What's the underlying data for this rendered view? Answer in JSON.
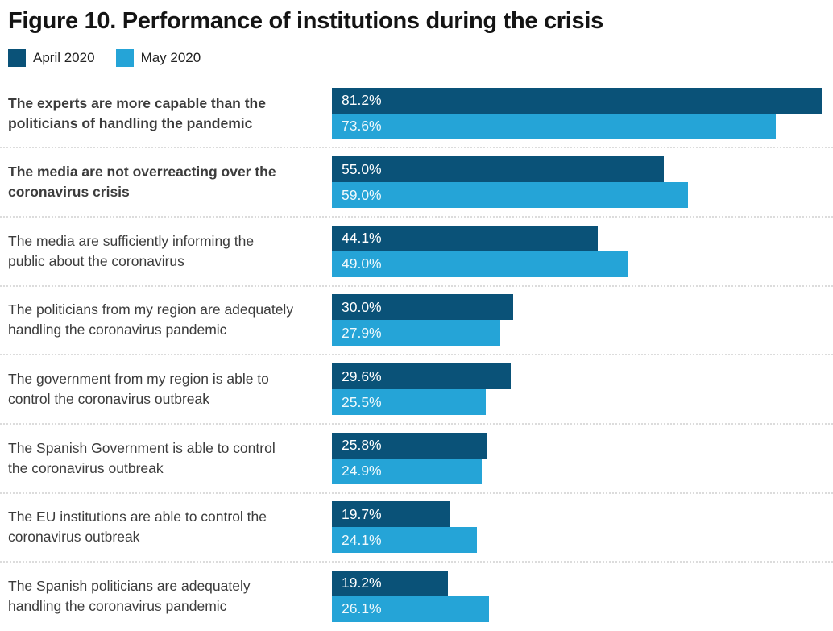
{
  "title": "Figure 10. Performance of institutions during the crisis",
  "legend": {
    "items": [
      {
        "label": "April 2020",
        "color": "#0A5278"
      },
      {
        "label": "May 2020",
        "color": "#25A4D7"
      }
    ]
  },
  "colors": {
    "april_bar": "#0A5278",
    "may_bar": "#25A4D7",
    "title_text": "#141414",
    "category_text": "#3C3C3C",
    "bar_value_text": "#FFFFFF",
    "separator": "#DCDCDC",
    "background": "#FFFFFF"
  },
  "chart_data": {
    "type": "bar",
    "orientation": "horizontal",
    "title": "Figure 10. Performance of institutions during the crisis",
    "categories": [
      "The experts are more capable than the politicians of handling the pandemic",
      "The media are not overreacting over the coronavirus crisis",
      "The media are sufficiently informing the public about the coronavirus",
      "The politicians from my region are adequately handling the coronavirus pandemic",
      "The government from my region is able to control the coronavirus outbreak",
      "The Spanish Government is able to control the coronavirus outbreak",
      "The EU institutions are able to control the coronavirus outbreak",
      "The Spanish politicians are adequately handling the coronavirus pandemic"
    ],
    "emphasized_category_indexes": [
      0,
      1
    ],
    "series": [
      {
        "name": "April 2020",
        "color": "#0A5278",
        "values": [
          81.2,
          55.0,
          44.1,
          30.0,
          29.6,
          25.8,
          19.7,
          19.2
        ],
        "labels": [
          "81.2%",
          "55.0%",
          "44.1%",
          "30.0%",
          "29.6%",
          "25.8%",
          "19.7%",
          "19.2%"
        ]
      },
      {
        "name": "May 2020",
        "color": "#25A4D7",
        "values": [
          73.6,
          59.0,
          49.0,
          27.9,
          25.5,
          24.9,
          24.1,
          26.1
        ],
        "labels": [
          "73.6%",
          "59.0%",
          "49.0%",
          "27.9%",
          "25.5%",
          "24.9%",
          "24.1%",
          "26.1%"
        ]
      }
    ],
    "xlim": [
      0,
      83.1
    ],
    "value_label_format": "{value}%",
    "grid": false,
    "legend_position": "top-left"
  }
}
